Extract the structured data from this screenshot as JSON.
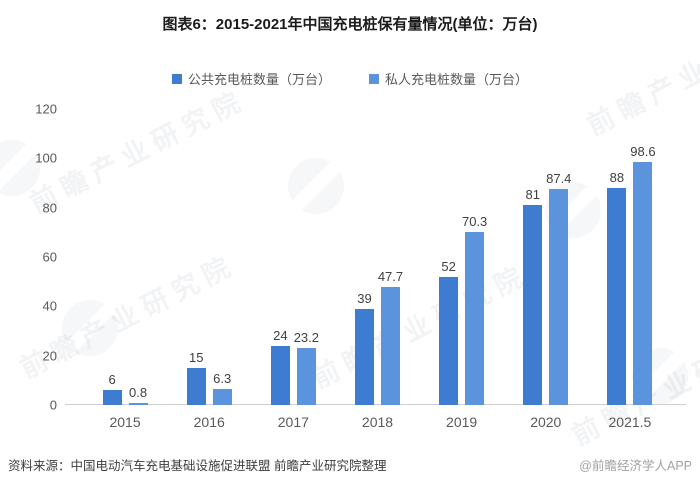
{
  "title": "图表6：2015-2021年中国充电桩保有量情况(单位：万台)",
  "chart_data": {
    "type": "bar",
    "categories": [
      "2015",
      "2016",
      "2017",
      "2018",
      "2019",
      "2020",
      "2021.5"
    ],
    "series": [
      {
        "name": "公共充电桩数量（万台）",
        "color": "#3e7cd2",
        "values": [
          6,
          15,
          24,
          39,
          52,
          81,
          88
        ]
      },
      {
        "name": "私人充电桩数量（万台）",
        "color": "#5b93dc",
        "values": [
          0.8,
          6.3,
          23.2,
          47.7,
          70.3,
          87.4,
          98.6
        ]
      }
    ],
    "ylim": [
      0,
      120
    ],
    "yticks": [
      0,
      20,
      40,
      60,
      80,
      100,
      120
    ],
    "grid": false,
    "legend_position": "top",
    "value_labels": true
  },
  "footer": {
    "source": "资料来源：中国电动汽车充电基础设施促进联盟 前瞻产业研究院整理",
    "credit": "@前瞻经济学人APP"
  },
  "watermark": {
    "text": "前瞻产业研究院"
  }
}
